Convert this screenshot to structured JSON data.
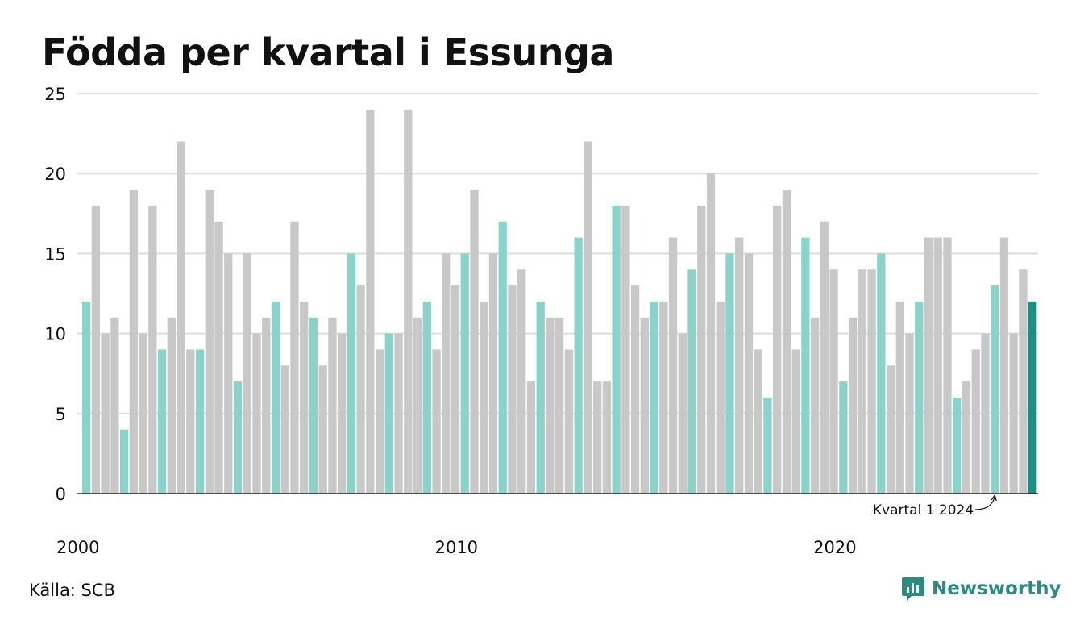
{
  "title": "Födda per kvartal i Essunga",
  "source": "Källa: SCB",
  "brand": {
    "name": "Newsworthy",
    "icon": "chart-bubble-logo"
  },
  "colors": {
    "q1": "#8ad3cb",
    "other": "#c8c8c8",
    "latest": "#1b8f82",
    "grid": "#dddddd",
    "axis": "#222222"
  },
  "chart_data": {
    "type": "bar",
    "title": "Födda per kvartal i Essunga",
    "xlabel": "",
    "ylabel": "",
    "ylim": [
      0,
      25
    ],
    "yticks": [
      0,
      5,
      10,
      15,
      20,
      25
    ],
    "xtick_labels": [
      {
        "label": "2000",
        "year": 2000
      },
      {
        "label": "2010",
        "year": 2010
      },
      {
        "label": "2020",
        "year": 2020
      }
    ],
    "start_year": 2000,
    "start_quarter": 1,
    "grid": true,
    "annotation": {
      "text": "Kvartal 1 2024",
      "year": 2024,
      "quarter": 1
    },
    "values": [
      12,
      18,
      10,
      11,
      4,
      19,
      10,
      18,
      9,
      11,
      22,
      9,
      9,
      19,
      17,
      15,
      7,
      15,
      10,
      11,
      12,
      8,
      17,
      12,
      11,
      8,
      11,
      10,
      15,
      13,
      24,
      9,
      10,
      10,
      24,
      11,
      12,
      9,
      15,
      13,
      15,
      19,
      12,
      15,
      17,
      13,
      14,
      7,
      12,
      11,
      11,
      9,
      16,
      22,
      7,
      7,
      18,
      18,
      13,
      11,
      12,
      12,
      16,
      10,
      14,
      18,
      20,
      12,
      15,
      16,
      15,
      9,
      6,
      18,
      19,
      9,
      16,
      11,
      17,
      14,
      7,
      11,
      14,
      14,
      15,
      8,
      12,
      10,
      12,
      16,
      16,
      16,
      6,
      7,
      9,
      10,
      13,
      16,
      10,
      14,
      12
    ]
  }
}
